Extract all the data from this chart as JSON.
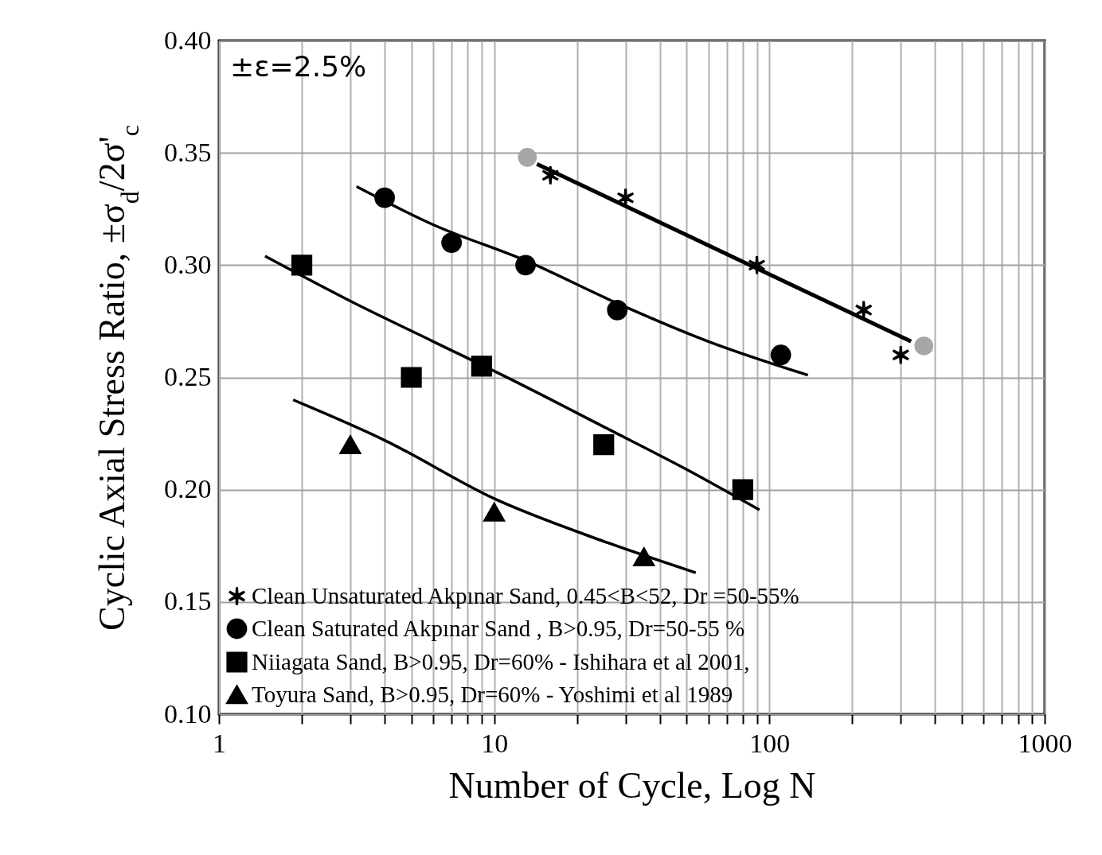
{
  "chart_data": {
    "type": "scatter",
    "xlabel": "Number of Cycle, Log N",
    "ylabel": "Cyclic Axial Stress Ratio, ±σ$_{d}$/2σ'$_{c}$",
    "annotations": [
      "±ε=2.5%"
    ],
    "log": "x",
    "xlim": [
      1,
      1000
    ],
    "xticks": [
      1,
      {
        "value": 2,
        "label": null
      },
      {
        "value": 3,
        "label": null
      },
      {
        "value": 4,
        "label": null
      },
      {
        "value": 5,
        "label": null
      },
      {
        "value": 6,
        "label": null
      },
      {
        "value": 7,
        "label": null
      },
      {
        "value": 8,
        "label": null
      },
      {
        "value": 9,
        "label": null
      },
      10,
      {
        "value": 20,
        "label": null
      },
      {
        "value": 30,
        "label": null
      },
      {
        "value": 40,
        "label": null
      },
      {
        "value": 50,
        "label": null
      },
      {
        "value": 60,
        "label": null
      },
      {
        "value": 70,
        "label": null
      },
      {
        "value": 80,
        "label": null
      },
      {
        "value": 90,
        "label": null
      },
      100,
      {
        "value": 200,
        "label": null
      },
      {
        "value": 300,
        "label": null
      },
      {
        "value": 400,
        "label": null
      },
      {
        "value": 500,
        "label": null
      },
      {
        "value": 600,
        "label": null
      },
      {
        "value": 700,
        "label": null
      },
      {
        "value": 800,
        "label": null
      },
      {
        "value": 900,
        "label": null
      },
      1000
    ],
    "ylim": [
      0.1,
      0.4
    ],
    "yticks": [
      {
        "value": 0.1,
        "label": "0.10"
      },
      {
        "value": 0.15,
        "label": "0.15"
      },
      {
        "value": 0.2,
        "label": "0.20"
      },
      {
        "value": 0.25,
        "label": "0.25"
      },
      {
        "value": 0.3,
        "label": "0.30"
      },
      {
        "value": 0.35,
        "label": "0.35"
      },
      {
        "value": 0.4,
        "label": "0.40"
      }
    ],
    "grid": true,
    "legend": "bottom left",
    "series": [
      {
        "type": "line",
        "color": "#000000",
        "marker": "none",
        "x": [
          14.3,
          327
        ],
        "values": [
          0.345,
          0.266
        ]
      },
      {
        "type": "line",
        "color": "#000000",
        "marker": "none",
        "x": [
          3.16,
          6,
          13,
          28,
          60,
          138
        ],
        "values": [
          0.335,
          0.318,
          0.302,
          0.283,
          0.266,
          0.251
        ]
      },
      {
        "type": "line",
        "color": "#000000",
        "marker": "none",
        "x": [
          1.47,
          3,
          6,
          12,
          25,
          50,
          92
        ],
        "values": [
          0.304,
          0.284,
          0.266,
          0.248,
          0.228,
          0.209,
          0.191
        ]
      },
      {
        "type": "line",
        "color": "#000000",
        "marker": "none",
        "x": [
          1.86,
          4,
          10,
          25,
          54
        ],
        "values": [
          0.24,
          0.222,
          0.196,
          0.177,
          0.163
        ]
      },
      {
        "color": "#a6a6a6",
        "marker": "circle",
        "x": [
          13.2,
          364
        ],
        "values": [
          0.348,
          0.264
        ]
      },
      {
        "name": "Clean Unsaturated Akpınar Sand, 0.45<B<52, Dr =50-55%",
        "color": "#000000",
        "marker": "cross",
        "x": [
          16,
          30,
          90,
          220,
          300
        ],
        "values": [
          0.34,
          0.33,
          0.3,
          0.28,
          0.26
        ]
      },
      {
        "name": "Clean Saturated Akpınar Sand , B>0.95, Dr=50-55 %",
        "color": "#000000",
        "marker": "circle",
        "x": [
          4,
          7,
          13,
          28,
          110
        ],
        "values": [
          0.33,
          0.31,
          0.3,
          0.28,
          0.26
        ]
      },
      {
        "name": "Niiagata Sand, B>0.95, Dr=60% - Ishihara et al 2001,",
        "color": "#000000",
        "marker": "square",
        "x": [
          2,
          5,
          9,
          25,
          80
        ],
        "values": [
          0.3,
          0.25,
          0.255,
          0.22,
          0.2
        ]
      },
      {
        "name": "Toyura Sand, B>0.95, Dr=60% - Yoshimi et al 1989",
        "color": "#000000",
        "marker": "triangle",
        "x": [
          3,
          10,
          35
        ],
        "values": [
          0.22,
          0.19,
          0.17
        ]
      }
    ]
  }
}
